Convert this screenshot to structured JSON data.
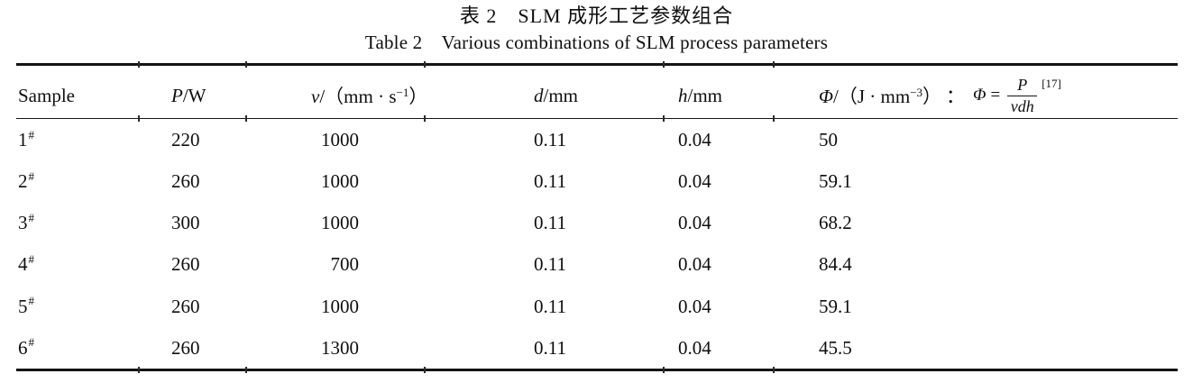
{
  "titles": {
    "cn": "表 2　SLM 成形工艺参数组合",
    "en": "Table 2　Various combinations of SLM process parameters"
  },
  "header": {
    "sample": "Sample",
    "power_var": "P",
    "power_unit": "/W",
    "speed_var": "v",
    "speed_unit_pre": "/（mm · s",
    "speed_sup": "−1",
    "speed_unit_post": "）",
    "d_var": "d",
    "d_unit": "/mm",
    "h_var": "h",
    "h_unit": "/mm",
    "energy_var": "Φ",
    "energy_unit_pre": "/（J · mm",
    "energy_sup": "−3",
    "energy_unit_post": "）",
    "separator": "：",
    "formula": {
      "lhs_var": "Φ",
      "equals": "=",
      "numerator": "P",
      "denominator": "vdh",
      "ref": "[17]"
    }
  },
  "rows": [
    {
      "sample": "1",
      "sample_sup": "#",
      "power": "220",
      "speed": "1000",
      "d": "0.11",
      "h": "0.04",
      "energy": "50"
    },
    {
      "sample": "2",
      "sample_sup": "#",
      "power": "260",
      "speed": "1000",
      "d": "0.11",
      "h": "0.04",
      "energy": "59.1"
    },
    {
      "sample": "3",
      "sample_sup": "#",
      "power": "300",
      "speed": "1000",
      "d": "0.11",
      "h": "0.04",
      "energy": "68.2"
    },
    {
      "sample": "4",
      "sample_sup": "#",
      "power": "260",
      "speed": "700",
      "d": "0.11",
      "h": "0.04",
      "energy": "84.4"
    },
    {
      "sample": "5",
      "sample_sup": "#",
      "power": "260",
      "speed": "1000",
      "d": "0.11",
      "h": "0.04",
      "energy": "59.1"
    },
    {
      "sample": "6",
      "sample_sup": "#",
      "power": "260",
      "speed": "1300",
      "d": "0.11",
      "h": "0.04",
      "energy": "45.5"
    }
  ],
  "colors": {
    "text": "#0e0e0e",
    "rule": "#141414",
    "background": "#ffffff"
  }
}
